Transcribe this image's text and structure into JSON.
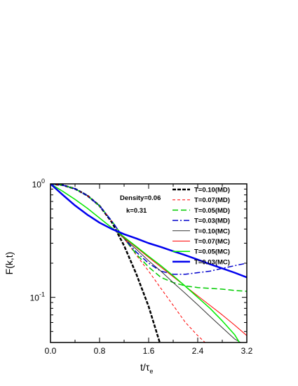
{
  "chart_data": {
    "type": "line",
    "xlabel": "t/τ",
    "xlabel_sub": "e",
    "ylabel": "F(k,t)",
    "yscale": "log",
    "xlim": [
      0.0,
      3.2
    ],
    "ylim": [
      0.04,
      1.0
    ],
    "x_ticks": [
      {
        "value": 0.0,
        "label": "0.0"
      },
      {
        "value": 0.8,
        "label": "0.8"
      },
      {
        "value": 1.6,
        "label": "1.6"
      },
      {
        "value": 2.4,
        "label": "2.4"
      },
      {
        "value": 3.2,
        "label": "3.2"
      }
    ],
    "y_ticks": [
      {
        "value": 1.0,
        "base": "10",
        "exp": "0"
      },
      {
        "value": 0.1,
        "base": "10",
        "exp": "-1"
      }
    ],
    "annotations": [
      "Density=0.06",
      "k=0.31"
    ],
    "legend_position": "top-right",
    "series": [
      {
        "name": "T=0.10(MD)",
        "color": "#000000",
        "width": 2.5,
        "dash": "5,2",
        "x": [
          0,
          0.2,
          0.4,
          0.6,
          0.8,
          1.0,
          1.2,
          1.4,
          1.6,
          1.78
        ],
        "y": [
          1.0,
          0.975,
          0.905,
          0.79,
          0.64,
          0.46,
          0.285,
          0.16,
          0.083,
          0.04
        ]
      },
      {
        "name": "T=0.07(MD)",
        "color": "#ff0000",
        "width": 1,
        "dash": "4,3",
        "x": [
          0,
          0.2,
          0.4,
          0.6,
          0.8,
          1.0,
          1.2,
          1.4,
          1.6,
          1.8,
          2.0,
          2.2,
          2.4,
          2.52
        ],
        "y": [
          1.0,
          0.975,
          0.905,
          0.79,
          0.64,
          0.47,
          0.33,
          0.235,
          0.17,
          0.12,
          0.085,
          0.06,
          0.046,
          0.04
        ]
      },
      {
        "name": "T=0.05(MD)",
        "color": "#00cc00",
        "width": 1.5,
        "dash": "8,4",
        "x": [
          0,
          0.2,
          0.4,
          0.6,
          0.8,
          1.0,
          1.2,
          1.4,
          1.6,
          1.8,
          2.0,
          2.2,
          2.4,
          2.6,
          2.8,
          3.0,
          3.2
        ],
        "y": [
          1.0,
          0.975,
          0.905,
          0.79,
          0.64,
          0.47,
          0.33,
          0.24,
          0.185,
          0.15,
          0.135,
          0.126,
          0.122,
          0.12,
          0.118,
          0.115,
          0.113
        ]
      },
      {
        "name": "T=0.03(MD)",
        "color": "#0000cc",
        "width": 1.5,
        "dash": "8,3,2,3",
        "x": [
          0,
          0.2,
          0.4,
          0.6,
          0.8,
          1.0,
          1.2,
          1.4,
          1.6,
          1.8,
          2.0,
          2.2,
          2.4,
          2.6,
          2.8,
          3.0,
          3.2
        ],
        "y": [
          1.0,
          0.975,
          0.905,
          0.79,
          0.64,
          0.47,
          0.33,
          0.25,
          0.2,
          0.17,
          0.16,
          0.16,
          0.165,
          0.17,
          0.18,
          0.19,
          0.2
        ]
      },
      {
        "name": "T=0.10(MC)",
        "color": "#333333",
        "width": 1,
        "dash": "",
        "x": [
          0,
          0.2,
          0.4,
          0.6,
          0.8,
          1.0,
          1.2,
          1.4,
          1.6,
          1.8,
          2.0,
          2.2,
          2.4,
          2.6,
          2.8,
          3.0,
          3.1
        ],
        "y": [
          1.0,
          0.86,
          0.73,
          0.61,
          0.5,
          0.41,
          0.33,
          0.265,
          0.21,
          0.17,
          0.135,
          0.108,
          0.086,
          0.068,
          0.054,
          0.043,
          0.04
        ]
      },
      {
        "name": "T=0.07(MC)",
        "color": "#ff0000",
        "width": 1,
        "dash": "",
        "x": [
          0,
          0.2,
          0.4,
          0.6,
          0.8,
          1.0,
          1.2,
          1.4,
          1.6,
          1.8,
          2.0,
          2.2,
          2.4,
          2.6,
          2.8,
          3.0,
          3.2
        ],
        "y": [
          1.0,
          0.86,
          0.73,
          0.61,
          0.5,
          0.41,
          0.335,
          0.275,
          0.225,
          0.185,
          0.152,
          0.125,
          0.103,
          0.085,
          0.07,
          0.057,
          0.046
        ]
      },
      {
        "name": "T=0.05(MC)",
        "color": "#00ee00",
        "width": 1.5,
        "dash": "",
        "x": [
          0,
          0.2,
          0.4,
          0.6,
          0.8,
          1.0,
          1.2,
          1.4,
          1.6,
          1.8,
          2.0,
          2.2,
          2.4,
          2.6,
          2.8,
          3.0,
          3.08
        ],
        "y": [
          1.0,
          0.86,
          0.73,
          0.61,
          0.5,
          0.41,
          0.34,
          0.28,
          0.23,
          0.19,
          0.155,
          0.125,
          0.1,
          0.08,
          0.062,
          0.047,
          0.04
        ]
      },
      {
        "name": "T=0.03(MC)",
        "color": "#0000ee",
        "width": 2.5,
        "dash": "",
        "x": [
          0,
          0.2,
          0.4,
          0.6,
          0.8,
          1.0,
          1.2,
          1.4,
          1.6,
          1.8,
          2.0,
          2.2,
          2.4,
          2.6,
          2.8,
          3.0,
          3.2
        ],
        "y": [
          1.0,
          0.8,
          0.645,
          0.535,
          0.455,
          0.4,
          0.36,
          0.33,
          0.3,
          0.278,
          0.255,
          0.235,
          0.215,
          0.196,
          0.18,
          0.165,
          0.15
        ]
      }
    ]
  }
}
